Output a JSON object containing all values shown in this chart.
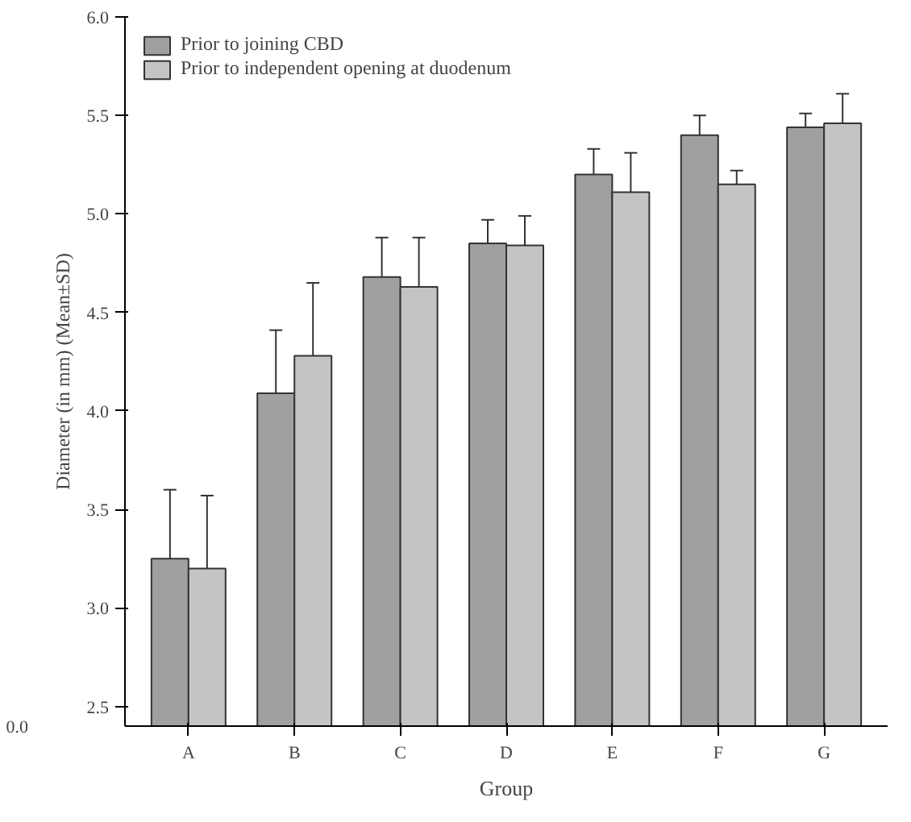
{
  "chart_data": {
    "type": "bar",
    "xlabel": "Group",
    "ylabel": "Diameter (in mm) (Mean±SD)",
    "categories": [
      "A",
      "B",
      "C",
      "D",
      "E",
      "F",
      "G"
    ],
    "series": [
      {
        "name": "Prior to joining CBD",
        "color": "#a0a0a0",
        "values": [
          3.25,
          4.09,
          4.68,
          4.85,
          5.2,
          5.4,
          5.44
        ],
        "errors": [
          0.35,
          0.32,
          0.2,
          0.12,
          0.13,
          0.1,
          0.07
        ]
      },
      {
        "name": "Prior to independent opening at duodenum",
        "color": "#c4c4c4",
        "values": [
          3.2,
          4.28,
          4.63,
          4.84,
          5.11,
          5.15,
          5.46
        ],
        "errors": [
          0.37,
          0.37,
          0.25,
          0.15,
          0.2,
          0.07,
          0.15
        ]
      }
    ],
    "ylim": [
      2.4,
      6.0
    ],
    "yticks": [
      {
        "value": 2.5,
        "label": "2.5"
      },
      {
        "value": 3.0,
        "label": "3.0"
      },
      {
        "value": 3.5,
        "label": "3.5"
      },
      {
        "value": 4.0,
        "label": "4.0"
      },
      {
        "value": 4.5,
        "label": "4.5"
      },
      {
        "value": 5.0,
        "label": "5.0"
      },
      {
        "value": 5.5,
        "label": "5.5"
      },
      {
        "value": 6.0,
        "label": "6.0"
      }
    ],
    "annotations": [
      "0.0"
    ],
    "legend": "top left",
    "grid": false
  }
}
